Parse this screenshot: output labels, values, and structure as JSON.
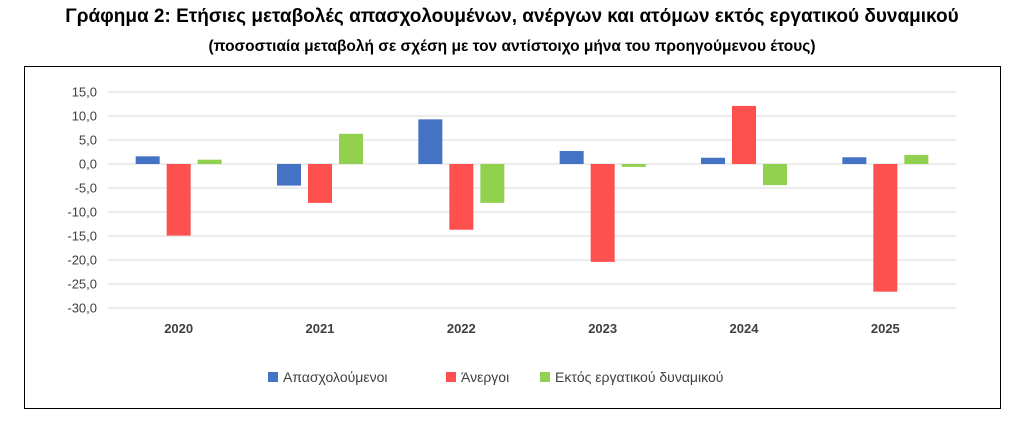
{
  "title": "Γράφημα 2: Ετήσιες μεταβολές απασχολουμένων, ανέργων και ατόμων εκτός εργατικού δυναμικού",
  "subtitle": "(ποσοστιαία μεταβολή σε σχέση με τον αντίστοιχο μήνα του προηγούμενου έτους)",
  "colors": {
    "employed": "#4472c4",
    "unemployed": "#ff5050",
    "outside": "#92d050",
    "grid": "#d9d9d9"
  },
  "chart_data": {
    "type": "bar",
    "categories": [
      "2020",
      "2021",
      "2022",
      "2023",
      "2024",
      "2025"
    ],
    "series": [
      {
        "name": "Απασχολούμενοι",
        "values": [
          1.6,
          -4.5,
          9.3,
          2.7,
          1.3,
          1.4
        ]
      },
      {
        "name": "Άνεργοι",
        "values": [
          -14.9,
          -8.1,
          -13.7,
          -20.4,
          12.1,
          -26.6
        ]
      },
      {
        "name": "Εκτός εργατικού δυναμικού",
        "values": [
          0.9,
          6.3,
          -8.1,
          -0.6,
          -4.4,
          1.9
        ]
      }
    ],
    "yticks": [
      "15,0",
      "10,0",
      "5,0",
      "0,0",
      "-5,0",
      "-10,0",
      "-15,0",
      "-20,0",
      "-25,0",
      "-30,0"
    ],
    "ylim": [
      -30,
      15
    ],
    "grid": true,
    "legend": "bottom-center"
  }
}
